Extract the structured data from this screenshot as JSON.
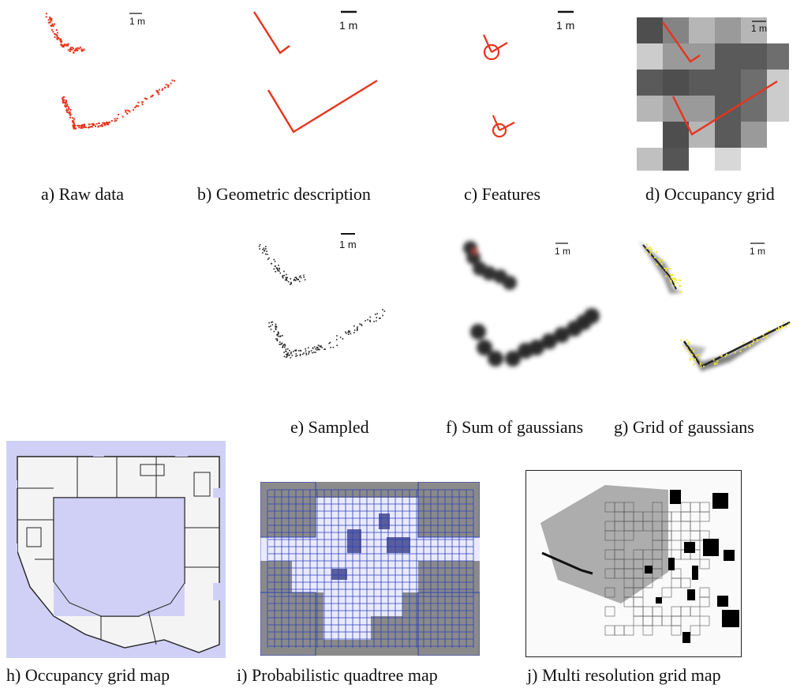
{
  "scale_label": "1 m",
  "colors": {
    "laser": "#e8341c",
    "lavender": "#d0d0f6",
    "quad_gray": "#8a8a8a",
    "quad_blue": "#2c3fb8",
    "yellow": "#f4ea2a"
  },
  "captions": {
    "a": "a) Raw data",
    "b": "b) Geometric description",
    "c": "c) Features",
    "d": "d) Occupancy grid",
    "e": "e) Sampled",
    "f": "f) Sum of gaussians",
    "g": "g) Grid of gaussians",
    "h": "h) Occupancy grid map",
    "i": "i) Probabilistic quadtree map",
    "j": "j) Multi resolution grid map"
  }
}
